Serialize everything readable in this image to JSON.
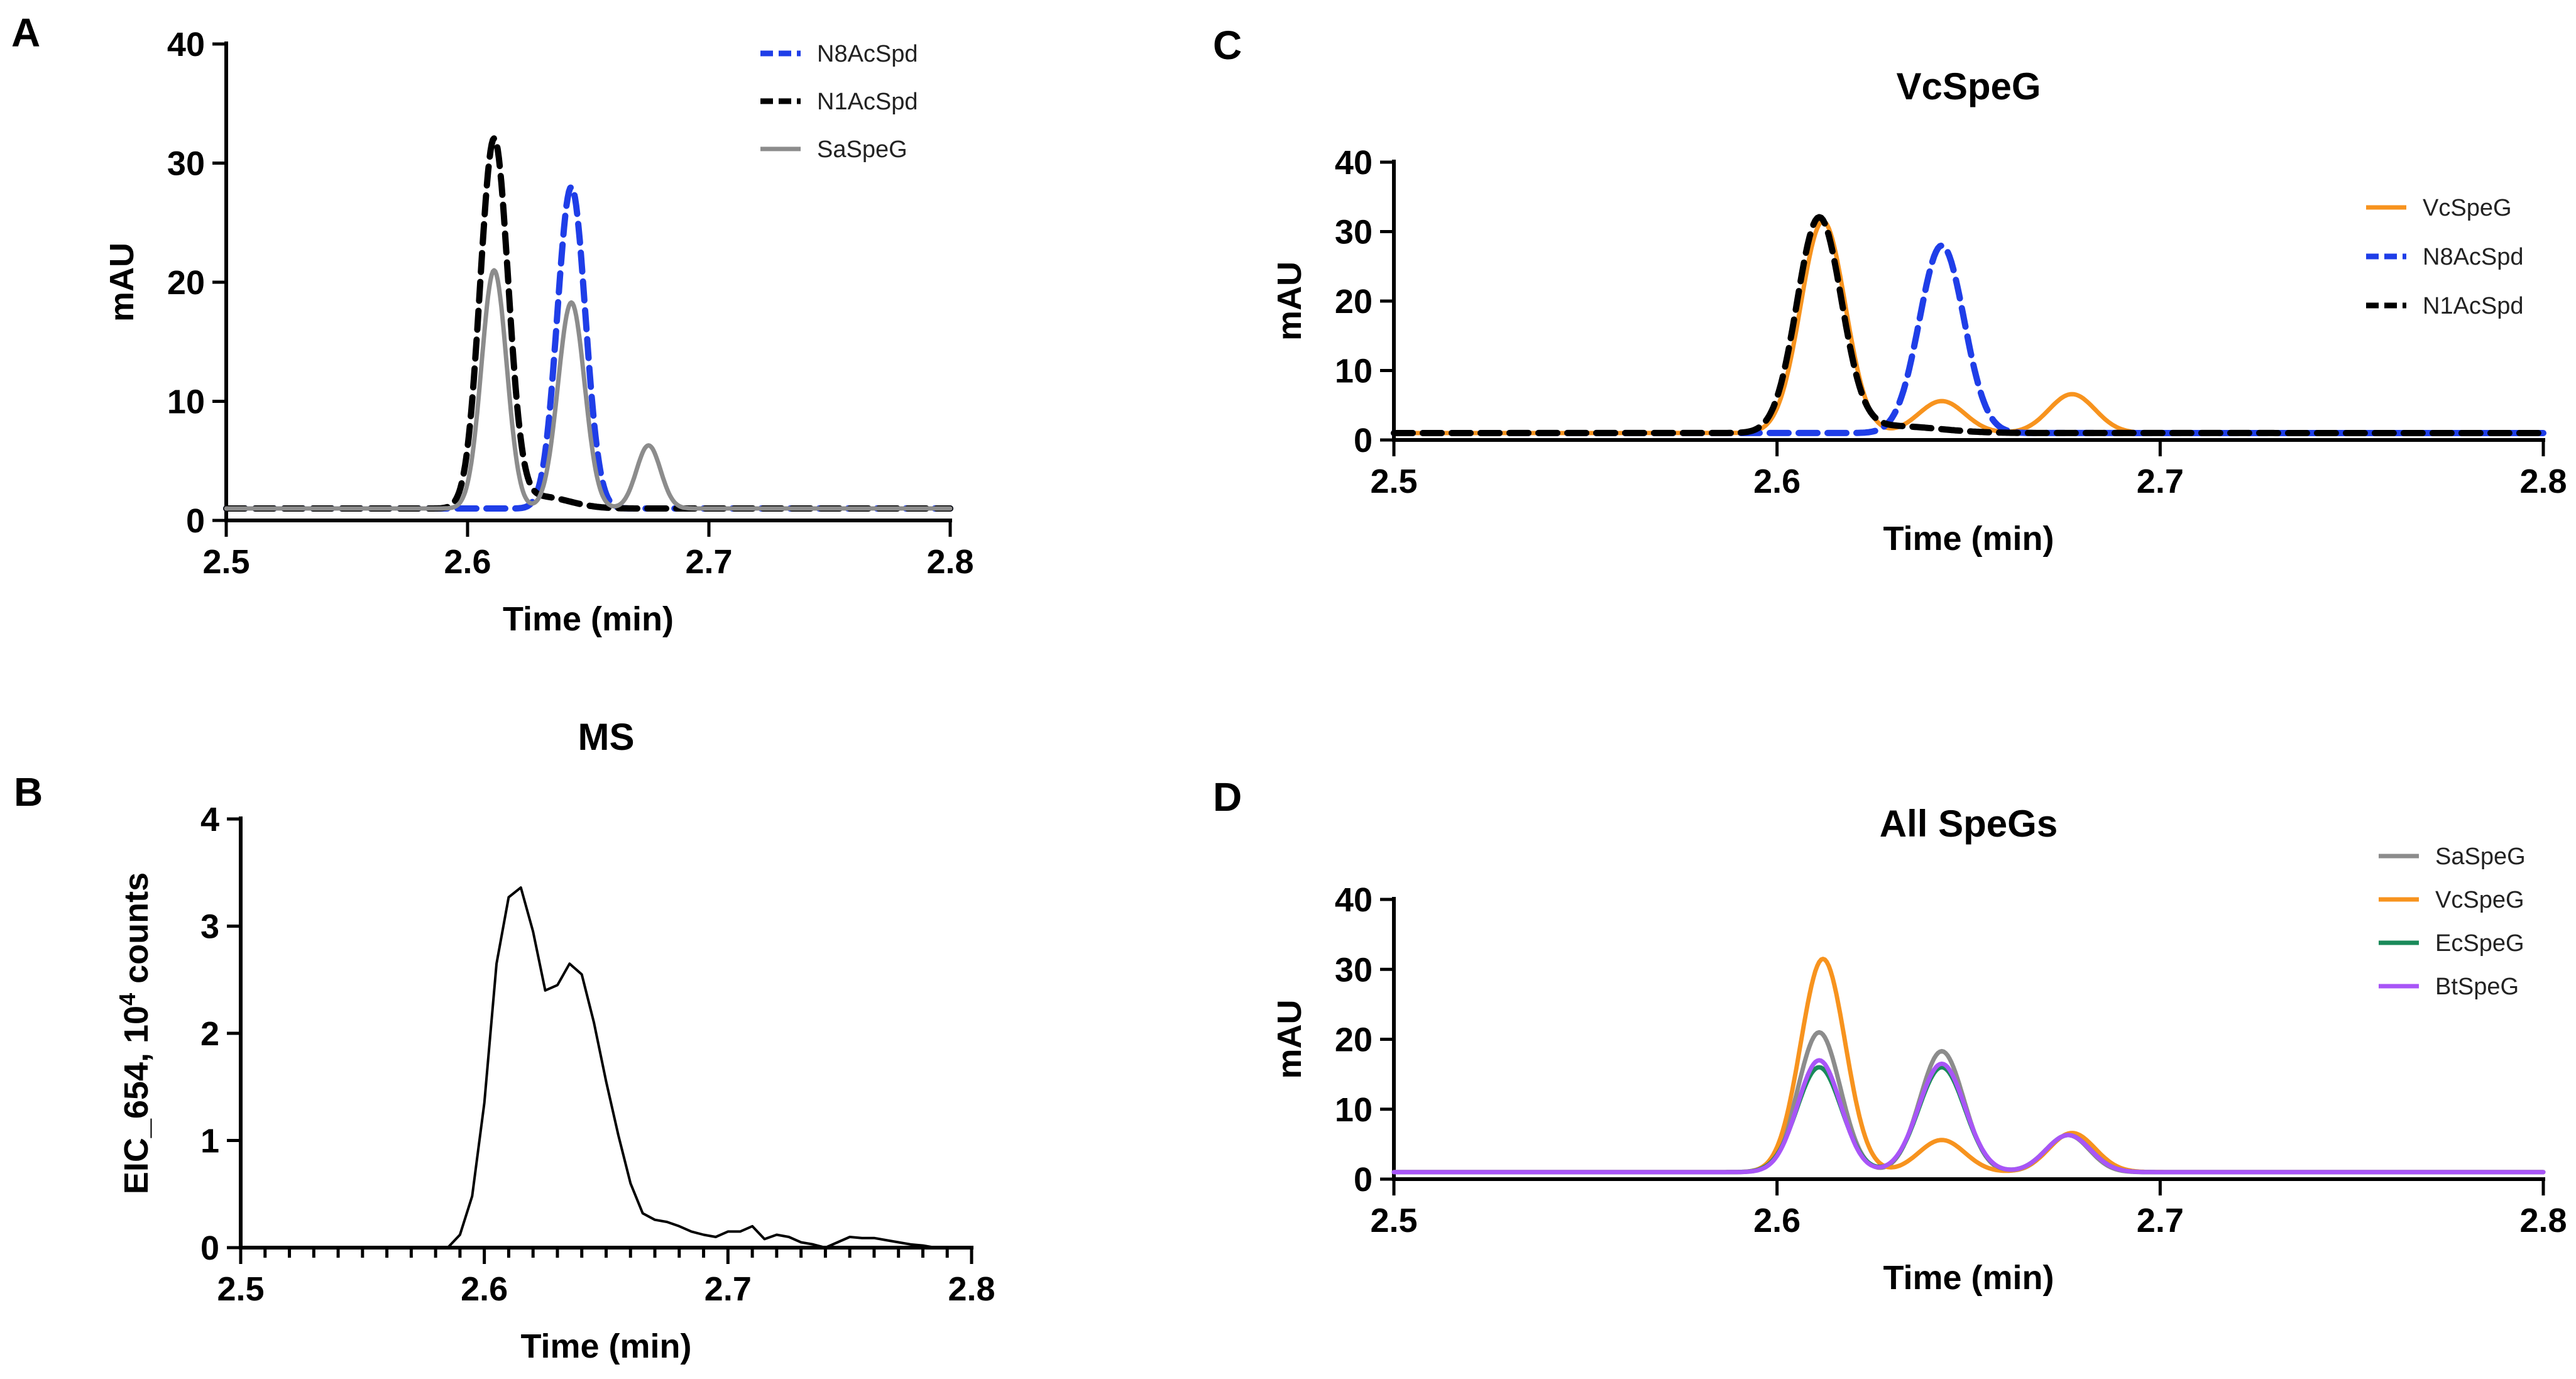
{
  "chart_data": [
    {
      "panel": "A",
      "type": "line",
      "title": "",
      "xlabel": "Time (min)",
      "ylabel": "mAU",
      "xlim": [
        2.5,
        2.8
      ],
      "ylim": [
        0,
        40
      ],
      "x_ticks": [
        "2.5",
        "2.6",
        "2.7",
        "2.8"
      ],
      "y_ticks": [
        "0",
        "10",
        "20",
        "30",
        "40"
      ],
      "minor_x_ticks": false,
      "legend_position": "top-right",
      "series": [
        {
          "name": "N8AcSpd",
          "color": "#1f3ee8",
          "style": "dashed",
          "baseline": 1.0,
          "peaks": [
            {
              "t": 2.643,
              "h": 27.0,
              "sigma": 0.0058
            }
          ]
        },
        {
          "name": "N1AcSpd",
          "color": "#000000",
          "style": "dashed",
          "baseline": 1.0,
          "peaks": [
            {
              "t": 2.611,
              "h": 30.8,
              "sigma": 0.0058
            },
            {
              "t": 2.63,
              "h": 1.0,
              "sigma": 0.012
            }
          ]
        },
        {
          "name": "SaSpeG",
          "color": "#8c8c8c",
          "style": "solid",
          "baseline": 1.0,
          "peaks": [
            {
              "t": 2.611,
              "h": 20.0,
              "sigma": 0.0052
            },
            {
              "t": 2.643,
              "h": 17.3,
              "sigma": 0.0055
            },
            {
              "t": 2.675,
              "h": 5.3,
              "sigma": 0.005
            }
          ]
        }
      ]
    },
    {
      "panel": "B",
      "type": "line",
      "title": "MS",
      "xlabel": "Time (min)",
      "ylabel": "EIC_654, 10",
      "ylabel_sup": "4",
      "ylabel_suffix": " counts",
      "xlim": [
        2.5,
        2.8
      ],
      "ylim": [
        0,
        4
      ],
      "x_ticks": [
        "2.5",
        "2.6",
        "2.7",
        "2.8"
      ],
      "y_ticks": [
        "0",
        "1",
        "2",
        "3",
        "4"
      ],
      "minor_x_ticks": true,
      "series": [
        {
          "name": "EIC_654",
          "color": "#000000",
          "style": "solid",
          "x": [
            2.585,
            2.59,
            2.595,
            2.6,
            2.605,
            2.61,
            2.615,
            2.62,
            2.625,
            2.63,
            2.635,
            2.64,
            2.645,
            2.65,
            2.655,
            2.66,
            2.665,
            2.67,
            2.675,
            2.68,
            2.685,
            2.69,
            2.695,
            2.7,
            2.705,
            2.71,
            2.715,
            2.72,
            2.725,
            2.73,
            2.735,
            2.74,
            2.745,
            2.75,
            2.755,
            2.76,
            2.765,
            2.77,
            2.775,
            2.78,
            2.785,
            2.79
          ],
          "y": [
            0.0,
            0.12,
            0.48,
            1.35,
            2.65,
            3.27,
            3.36,
            2.95,
            2.4,
            2.45,
            2.65,
            2.55,
            2.1,
            1.55,
            1.05,
            0.6,
            0.32,
            0.26,
            0.24,
            0.2,
            0.15,
            0.12,
            0.1,
            0.15,
            0.15,
            0.2,
            0.08,
            0.12,
            0.1,
            0.05,
            0.03,
            0.0,
            0.05,
            0.1,
            0.09,
            0.09,
            0.07,
            0.05,
            0.03,
            0.02,
            0.0,
            0.0
          ]
        }
      ]
    },
    {
      "panel": "C",
      "type": "line",
      "title": "VcSpeG",
      "xlabel": "Time (min)",
      "ylabel": "mAU",
      "xlim": [
        2.5,
        2.8
      ],
      "ylim": [
        0,
        40
      ],
      "x_ticks": [
        "2.5",
        "2.6",
        "2.7",
        "2.8"
      ],
      "y_ticks": [
        "0",
        "10",
        "20",
        "30",
        "40"
      ],
      "minor_x_ticks": false,
      "legend_position": "top-right",
      "series": [
        {
          "name": "VcSpeG",
          "color": "#f7931e",
          "style": "solid",
          "baseline": 1.0,
          "peaks": [
            {
              "t": 2.612,
              "h": 30.5,
              "sigma": 0.0058
            },
            {
              "t": 2.643,
              "h": 4.6,
              "sigma": 0.006
            },
            {
              "t": 2.677,
              "h": 5.6,
              "sigma": 0.006
            }
          ]
        },
        {
          "name": "N8AcSpd",
          "color": "#1f3ee8",
          "style": "dashed",
          "baseline": 1.0,
          "peaks": [
            {
              "t": 2.643,
              "h": 27.0,
              "sigma": 0.0058
            }
          ]
        },
        {
          "name": "N1AcSpd",
          "color": "#000000",
          "style": "dashed",
          "baseline": 1.0,
          "peaks": [
            {
              "t": 2.611,
              "h": 30.8,
              "sigma": 0.0058
            },
            {
              "t": 2.63,
              "h": 1.0,
              "sigma": 0.012
            }
          ]
        }
      ]
    },
    {
      "panel": "D",
      "type": "line",
      "title": "All SpeGs",
      "xlabel": "Time (min)",
      "ylabel": "mAU",
      "xlim": [
        2.5,
        2.8
      ],
      "ylim": [
        0,
        40
      ],
      "x_ticks": [
        "2.5",
        "2.6",
        "2.7",
        "2.8"
      ],
      "y_ticks": [
        "0",
        "10",
        "20",
        "30",
        "40"
      ],
      "minor_x_ticks": false,
      "legend_position": "top-right",
      "series": [
        {
          "name": "SaSpeG",
          "color": "#8c8c8c",
          "style": "solid",
          "baseline": 1.0,
          "peaks": [
            {
              "t": 2.611,
              "h": 20.0,
              "sigma": 0.0055
            },
            {
              "t": 2.643,
              "h": 17.3,
              "sigma": 0.0057
            },
            {
              "t": 2.676,
              "h": 5.3,
              "sigma": 0.0055
            }
          ]
        },
        {
          "name": "VcSpeG",
          "color": "#f7931e",
          "style": "solid",
          "baseline": 1.0,
          "peaks": [
            {
              "t": 2.612,
              "h": 30.5,
              "sigma": 0.0058
            },
            {
              "t": 2.643,
              "h": 4.6,
              "sigma": 0.006
            },
            {
              "t": 2.677,
              "h": 5.6,
              "sigma": 0.006
            }
          ]
        },
        {
          "name": "EcSpeG",
          "color": "#1a8a5a",
          "style": "solid",
          "baseline": 1.0,
          "peaks": [
            {
              "t": 2.611,
              "h": 15.0,
              "sigma": 0.0058
            },
            {
              "t": 2.643,
              "h": 15.0,
              "sigma": 0.006
            },
            {
              "t": 2.676,
              "h": 5.3,
              "sigma": 0.0058
            }
          ]
        },
        {
          "name": "BtSpeG",
          "color": "#a855f7",
          "style": "solid",
          "baseline": 1.0,
          "peaks": [
            {
              "t": 2.611,
              "h": 16.0,
              "sigma": 0.0056
            },
            {
              "t": 2.643,
              "h": 15.5,
              "sigma": 0.006
            },
            {
              "t": 2.676,
              "h": 5.3,
              "sigma": 0.0058
            }
          ]
        }
      ]
    }
  ]
}
